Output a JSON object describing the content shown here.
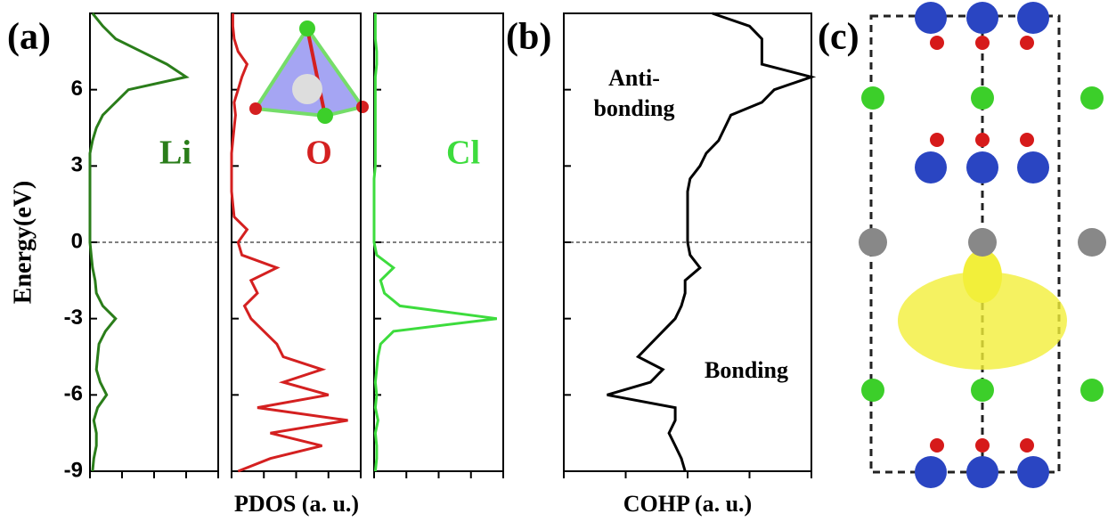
{
  "chart_data": [
    {
      "type": "line",
      "panel": "(a)",
      "ylabel": "Energy(eV)",
      "ylim": [
        -9,
        9
      ],
      "yticks": [
        -9,
        -6,
        -3,
        0,
        3,
        6
      ],
      "xlim": [
        0,
        1
      ],
      "xticks": [
        0,
        0.25,
        0.5,
        0.75,
        1
      ],
      "y": [
        -9,
        -8.5,
        -8,
        -7.5,
        -7,
        -6.5,
        -6,
        -5.5,
        -5,
        -4.5,
        -4,
        -3.5,
        -3,
        -2.5,
        -2,
        -1.5,
        -1,
        -0.5,
        0,
        0.5,
        1,
        1.5,
        2,
        2.5,
        3,
        3.5,
        4,
        4.5,
        5,
        5.5,
        6,
        6.5,
        7,
        7.5,
        8,
        8.5,
        9
      ],
      "series": [
        {
          "name": "Li",
          "color": "#2a7d1a",
          "values": [
            0.02,
            0.03,
            0.05,
            0.05,
            0.03,
            0.06,
            0.13,
            0.08,
            0.05,
            0.06,
            0.07,
            0.12,
            0.2,
            0.1,
            0.05,
            0.04,
            0.02,
            0.01,
            0,
            0,
            0,
            0,
            0,
            0,
            0,
            0,
            0.02,
            0.05,
            0.1,
            0.2,
            0.3,
            0.75,
            0.6,
            0.4,
            0.2,
            0.1,
            0.02
          ]
        }
      ]
    },
    {
      "type": "line",
      "xlabel": "PDOS (a. u.)",
      "ylim": [
        -9,
        9
      ],
      "xlim": [
        0,
        1
      ],
      "xticks": [
        0,
        0.25,
        0.5,
        0.75,
        1
      ],
      "y": [
        -9,
        -8.5,
        -8,
        -7.5,
        -7,
        -6.5,
        -6,
        -5.5,
        -5,
        -4.5,
        -4,
        -3.5,
        -3,
        -2.5,
        -2,
        -1.5,
        -1,
        -0.5,
        0,
        0.5,
        1,
        1.5,
        2,
        2.5,
        3,
        3.5,
        4,
        4.5,
        5,
        5.5,
        6,
        6.5,
        7,
        7.5,
        8,
        8.5,
        9
      ],
      "series": [
        {
          "name": "O",
          "color": "#d42020",
          "values": [
            0.05,
            0.3,
            0.7,
            0.3,
            0.9,
            0.2,
            0.75,
            0.4,
            0.7,
            0.4,
            0.35,
            0.25,
            0.15,
            0.1,
            0.2,
            0.15,
            0.35,
            0.08,
            0.05,
            0.12,
            0.02,
            0.01,
            0,
            0,
            0,
            0,
            0.01,
            0.02,
            0.03,
            0.02,
            0.05,
            0.08,
            0.12,
            0.05,
            0.02,
            0.01,
            0.01
          ]
        }
      ]
    },
    {
      "type": "line",
      "ylim": [
        -9,
        9
      ],
      "xlim": [
        0,
        1
      ],
      "xticks": [
        0,
        0.25,
        0.5,
        0.75,
        1
      ],
      "y": [
        -9,
        -8.5,
        -8,
        -7.5,
        -7,
        -6.5,
        -6,
        -5.5,
        -5,
        -4.5,
        -4,
        -3.5,
        -3,
        -2.5,
        -2,
        -1.5,
        -1,
        -0.5,
        0,
        0.5,
        1,
        1.5,
        2,
        2.5,
        3,
        3.5,
        4,
        4.5,
        5,
        5.5,
        6,
        6.5,
        7,
        7.5,
        8,
        8.5,
        9
      ],
      "series": [
        {
          "name": "Cl",
          "color": "#3ddc3d",
          "values": [
            0.01,
            0.02,
            0.02,
            0.01,
            0.03,
            0.01,
            0.02,
            0.01,
            0.02,
            0.03,
            0.05,
            0.15,
            0.95,
            0.2,
            0.08,
            0.05,
            0.15,
            0.02,
            0,
            0,
            0,
            0,
            0,
            0,
            0.01,
            0.01,
            0.01,
            0.01,
            0.01,
            0.01,
            0.01,
            0.01,
            0.02,
            0.02,
            0.01,
            0.01,
            0.01
          ]
        }
      ]
    },
    {
      "type": "line",
      "panel": "(b)",
      "xlabel": "COHP (a. u.)",
      "annotations": [
        "Anti-",
        "bonding",
        "Bonding"
      ],
      "ylim": [
        -9,
        9
      ],
      "xlim": [
        -1,
        1
      ],
      "xticks": [
        -1,
        -0.5,
        0,
        0.5,
        1
      ],
      "y": [
        -9,
        -8.5,
        -8,
        -7.5,
        -7,
        -6.5,
        -6,
        -5.5,
        -5,
        -4.5,
        -4,
        -3.5,
        -3,
        -2.5,
        -2,
        -1.5,
        -1,
        -0.5,
        0,
        0.5,
        1,
        1.5,
        2,
        2.5,
        3,
        3.5,
        4,
        4.5,
        5,
        5.5,
        6,
        6.5,
        7,
        7.5,
        8,
        8.5,
        9
      ],
      "series": [
        {
          "color": "#000000",
          "values": [
            -0.02,
            -0.05,
            -0.1,
            -0.15,
            -0.1,
            -0.1,
            -0.65,
            -0.3,
            -0.2,
            -0.4,
            -0.3,
            -0.2,
            -0.1,
            -0.05,
            -0.02,
            -0.02,
            0.1,
            0.02,
            0,
            0,
            0,
            0,
            0,
            0.02,
            0.1,
            0.15,
            0.25,
            0.3,
            0.35,
            0.6,
            0.7,
            1,
            0.6,
            0.6,
            0.6,
            0.5,
            0.2
          ]
        }
      ]
    }
  ],
  "structure": {
    "panel": "(c)"
  }
}
